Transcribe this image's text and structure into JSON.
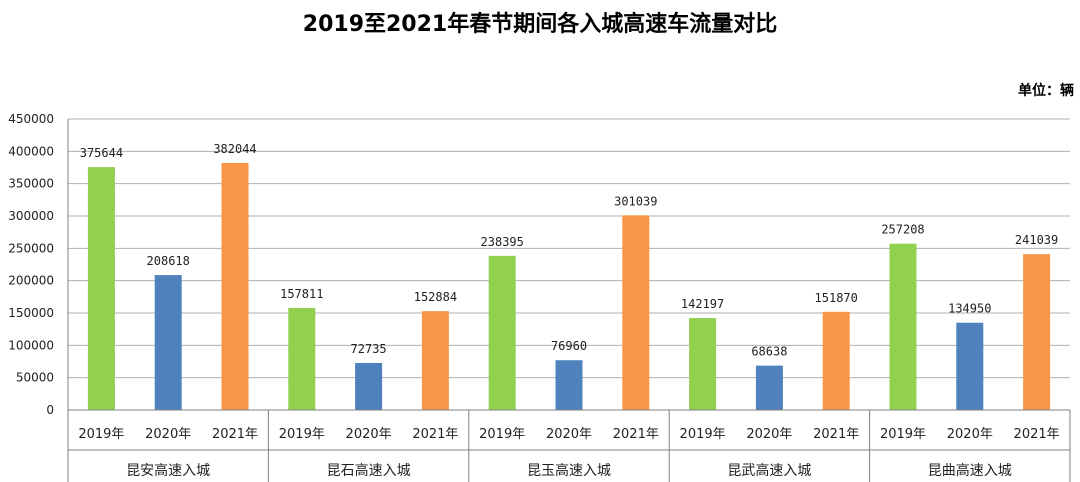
{
  "title": "2019至2021年春节期间各入城高速车流量对比",
  "unit_label": "单位：辆",
  "chart_data": {
    "type": "bar",
    "title": "2019至2021年春节期间各入城高速车流量对比",
    "xlabel": "",
    "ylabel": "",
    "ylim": [
      0,
      450000
    ],
    "yticks": [
      0,
      50000,
      100000,
      150000,
      200000,
      250000,
      300000,
      350000,
      400000,
      450000
    ],
    "grid": true,
    "legend": "none",
    "groups": [
      {
        "name": "昆安高速入城",
        "categories": [
          "2019年",
          "2020年",
          "2021年"
        ],
        "values": [
          375644,
          208618,
          382044
        ]
      },
      {
        "name": "昆石高速入城",
        "categories": [
          "2019年",
          "2020年",
          "2021年"
        ],
        "values": [
          157811,
          72735,
          152884
        ]
      },
      {
        "name": "昆玉高速入城",
        "categories": [
          "2019年",
          "2020年",
          "2021年"
        ],
        "values": [
          238395,
          76960,
          301039
        ]
      },
      {
        "name": "昆武高速入城",
        "categories": [
          "2019年",
          "2020年",
          "2021年"
        ],
        "values": [
          142197,
          68638,
          151870
        ]
      },
      {
        "name": "昆曲高速入城",
        "categories": [
          "2019年",
          "2020年",
          "2021年"
        ],
        "values": [
          257208,
          134950,
          241039
        ]
      }
    ],
    "year_colors": {
      "2019年": "#92d050",
      "2020年": "#4f81bd",
      "2021年": "#f79646"
    }
  }
}
